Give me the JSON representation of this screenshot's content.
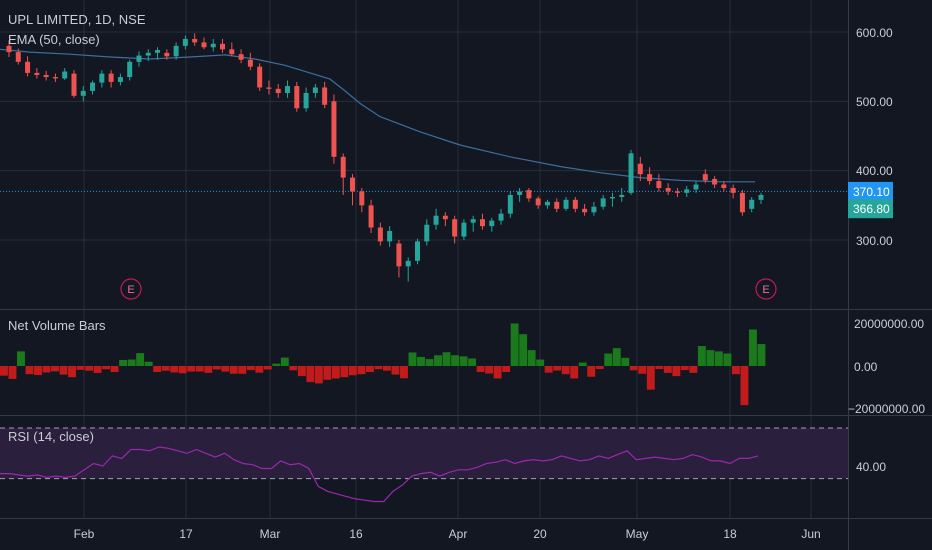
{
  "header": {
    "symbol_title": "UPL LIMITED, 1D, NSE",
    "ema_label": "EMA (50, close)"
  },
  "chart_data": {
    "type": "candlestick",
    "x_axis": {
      "tick_labels": [
        "Feb",
        "17",
        "Mar",
        "16",
        "Apr",
        "20",
        "May",
        "18",
        "Jun"
      ]
    },
    "price_axis": {
      "tick_labels": [
        "600.00",
        "500.00",
        "400.00",
        "300.00"
      ],
      "ylim": [
        215,
        625
      ]
    },
    "price_tags": {
      "last_price": "370.10",
      "close_price": "366.80",
      "last_price_value": 370.1,
      "close_price_value": 366.8
    },
    "earnings_markers": [
      "E",
      "E"
    ],
    "candles_ohlc": [
      [
        580,
        588,
        564,
        571
      ],
      [
        571,
        576,
        553,
        557
      ],
      [
        557,
        565,
        536,
        541
      ],
      [
        541,
        548,
        533,
        538
      ],
      [
        538,
        544,
        530,
        535
      ],
      [
        535,
        540,
        528,
        533
      ],
      [
        533,
        548,
        531,
        543
      ],
      [
        540,
        545,
        505,
        508
      ],
      [
        508,
        522,
        500,
        515
      ],
      [
        515,
        530,
        510,
        527
      ],
      [
        527,
        545,
        520,
        540
      ],
      [
        540,
        545,
        520,
        528
      ],
      [
        528,
        540,
        523,
        535
      ],
      [
        535,
        560,
        530,
        557
      ],
      [
        557,
        572,
        550,
        566
      ],
      [
        566,
        575,
        558,
        570
      ],
      [
        570,
        578,
        560,
        574
      ],
      [
        570,
        575,
        560,
        565
      ],
      [
        565,
        585,
        560,
        580
      ],
      [
        580,
        595,
        575,
        590
      ],
      [
        590,
        598,
        580,
        585
      ],
      [
        585,
        592,
        575,
        578
      ],
      [
        578,
        590,
        572,
        583
      ],
      [
        583,
        590,
        570,
        575
      ],
      [
        575,
        585,
        565,
        568
      ],
      [
        568,
        575,
        555,
        560
      ],
      [
        560,
        570,
        545,
        550
      ],
      [
        550,
        555,
        515,
        520
      ],
      [
        520,
        530,
        510,
        518
      ],
      [
        518,
        525,
        505,
        512
      ],
      [
        512,
        530,
        505,
        522
      ],
      [
        522,
        528,
        485,
        490
      ],
      [
        490,
        520,
        485,
        512
      ],
      [
        512,
        525,
        505,
        520
      ],
      [
        520,
        528,
        490,
        495
      ],
      [
        500,
        510,
        410,
        420
      ],
      [
        420,
        425,
        365,
        390
      ],
      [
        390,
        395,
        350,
        370
      ],
      [
        370,
        375,
        340,
        350
      ],
      [
        350,
        358,
        310,
        318
      ],
      [
        318,
        325,
        292,
        298
      ],
      [
        298,
        320,
        290,
        313
      ],
      [
        295,
        300,
        246,
        262
      ],
      [
        262,
        275,
        240,
        270
      ],
      [
        270,
        302,
        265,
        298
      ],
      [
        298,
        330,
        292,
        322
      ],
      [
        322,
        345,
        315,
        335
      ],
      [
        335,
        340,
        320,
        330
      ],
      [
        330,
        335,
        295,
        305
      ],
      [
        305,
        330,
        300,
        325
      ],
      [
        325,
        335,
        312,
        330
      ],
      [
        330,
        338,
        315,
        320
      ],
      [
        320,
        332,
        312,
        328
      ],
      [
        328,
        345,
        322,
        338
      ],
      [
        338,
        370,
        332,
        365
      ],
      [
        365,
        375,
        355,
        370
      ],
      [
        372,
        375,
        355,
        360
      ],
      [
        360,
        363,
        345,
        350
      ],
      [
        350,
        358,
        345,
        355
      ],
      [
        355,
        360,
        340,
        345
      ],
      [
        345,
        362,
        342,
        358
      ],
      [
        358,
        362,
        340,
        345
      ],
      [
        345,
        352,
        335,
        340
      ],
      [
        340,
        355,
        335,
        348
      ],
      [
        348,
        365,
        344,
        360
      ],
      [
        360,
        368,
        348,
        362
      ],
      [
        362,
        375,
        355,
        365
      ],
      [
        368,
        430,
        365,
        425
      ],
      [
        410,
        420,
        385,
        395
      ],
      [
        395,
        405,
        380,
        385
      ],
      [
        385,
        395,
        370,
        375
      ],
      [
        375,
        382,
        365,
        370
      ],
      [
        370,
        375,
        362,
        368
      ],
      [
        368,
        378,
        362,
        373
      ],
      [
        373,
        385,
        368,
        380
      ],
      [
        395,
        402,
        382,
        386
      ],
      [
        388,
        392,
        375,
        380
      ],
      [
        380,
        385,
        370,
        375
      ],
      [
        375,
        380,
        360,
        368
      ],
      [
        368,
        372,
        335,
        340
      ],
      [
        345,
        362,
        340,
        358
      ],
      [
        358,
        368,
        352,
        365
      ]
    ],
    "ema_50": [
      [
        0,
        575
      ],
      [
        30,
        571
      ],
      [
        70,
        568
      ],
      [
        110,
        564
      ],
      [
        150,
        561
      ],
      [
        190,
        564
      ],
      [
        225,
        567
      ],
      [
        255,
        561
      ],
      [
        285,
        552
      ],
      [
        310,
        541
      ],
      [
        330,
        532
      ],
      [
        345,
        515
      ],
      [
        360,
        497
      ],
      [
        380,
        478
      ],
      [
        420,
        456
      ],
      [
        460,
        437
      ],
      [
        510,
        420
      ],
      [
        560,
        406
      ],
      [
        600,
        397
      ],
      [
        640,
        390
      ],
      [
        680,
        386
      ],
      [
        720,
        384
      ],
      [
        755,
        384
      ]
    ],
    "net_volume": {
      "label": "Net Volume Bars",
      "tick_labels": [
        "20000000.00",
        "0.00",
        "−20000000.00"
      ],
      "ylim": [
        -23000000,
        23000000
      ],
      "values": [
        -4500000,
        -6000000,
        6800000,
        -3800000,
        -4200000,
        -3000000,
        -2500000,
        -4000000,
        -5200000,
        -1800000,
        -2200000,
        -3200000,
        -1500000,
        -2800000,
        2800000,
        3000000,
        6000000,
        2000000,
        -2800000,
        -2200000,
        -3000000,
        -3400000,
        -2600000,
        -2600000,
        -3200000,
        -1600000,
        -2600000,
        -3600000,
        -3600000,
        -1900000,
        -3100000,
        -1600000,
        1100000,
        3900000,
        -2000000,
        -4700000,
        -7500000,
        -8100000,
        -6400000,
        -5800000,
        -5200000,
        -4300000,
        -3800000,
        -2800000,
        -1500000,
        -2200000,
        -4000000,
        -5700000,
        6300000,
        4200000,
        3200000,
        5000000,
        6400000,
        5000000,
        4500000,
        3500000,
        -2800000,
        -3500000,
        -5800000,
        -2800000,
        19800000,
        14800000,
        7400000,
        3000000,
        -3100000,
        -2100000,
        -3800000,
        -5800000,
        1600000,
        -5000000,
        -1400000,
        5800000,
        8300000,
        3800000,
        -2000000,
        -3600000,
        -11000000,
        -1400000,
        -3200000,
        -4700000,
        -1900000,
        -3200000,
        9300000,
        7400000,
        6800000,
        5800000,
        -3800000,
        -18200000,
        17000000,
        10200000
      ]
    },
    "rsi": {
      "label": "RSI (14, close)",
      "tick_labels": [
        "40.00"
      ],
      "tick_values": [
        40
      ],
      "band_upper": 70,
      "band_lower": 30,
      "ylim": [
        12,
        76
      ],
      "values": [
        34,
        34,
        33,
        32,
        33,
        31,
        32,
        31,
        32,
        37,
        42,
        40,
        48,
        46,
        53,
        53,
        52,
        55,
        54,
        52,
        50,
        53,
        50,
        47,
        50,
        45,
        42,
        41,
        38,
        38,
        44,
        41,
        42,
        38,
        24,
        20,
        18,
        16,
        14,
        13,
        12,
        12,
        20,
        25,
        32,
        34,
        35,
        32,
        35,
        37,
        37,
        39,
        42,
        43,
        45,
        42,
        44,
        45,
        44,
        45,
        48,
        46,
        44,
        45,
        48,
        46,
        49,
        52,
        45,
        46,
        47,
        46,
        45,
        46,
        49,
        47,
        44,
        44,
        42,
        46,
        46,
        48
      ]
    }
  },
  "colors": {
    "background": "#131722",
    "grid": "#2a2e39",
    "up": "#26a69a",
    "down": "#ef5350",
    "ema": "#3d6e9e",
    "price_line": "#2196f3",
    "vol_up": "#1b7a1b",
    "vol_down": "#c21b1b",
    "rsi_line": "#9c27b0",
    "rsi_band": "#2a1f3d",
    "earnings": "#c2185b"
  }
}
